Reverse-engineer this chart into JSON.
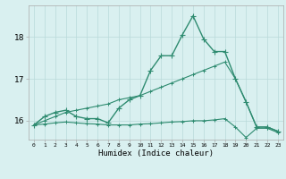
{
  "x": [
    0,
    1,
    2,
    3,
    4,
    5,
    6,
    7,
    8,
    9,
    10,
    11,
    12,
    13,
    14,
    15,
    16,
    17,
    18,
    19,
    20,
    21,
    22,
    23
  ],
  "main_curve": [
    15.9,
    16.1,
    16.2,
    16.25,
    16.1,
    16.05,
    16.05,
    15.95,
    16.3,
    16.5,
    16.6,
    17.2,
    17.55,
    17.55,
    18.05,
    18.5,
    17.95,
    17.65,
    17.65,
    17.0,
    16.45,
    15.85,
    15.85,
    15.75
  ],
  "upper_line": [
    15.9,
    16.0,
    16.1,
    16.2,
    16.25,
    16.3,
    16.35,
    16.4,
    16.5,
    16.55,
    16.6,
    16.7,
    16.8,
    16.9,
    17.0,
    17.1,
    17.2,
    17.3,
    17.4,
    17.0,
    16.45,
    15.85,
    15.85,
    15.75
  ],
  "lower_line": [
    15.9,
    15.92,
    15.95,
    15.97,
    15.95,
    15.93,
    15.92,
    15.9,
    15.9,
    15.9,
    15.92,
    15.93,
    15.95,
    15.97,
    15.98,
    16.0,
    16.0,
    16.02,
    16.05,
    15.85,
    15.6,
    15.82,
    15.82,
    15.72
  ],
  "line_color": "#2e8b70",
  "bg_color": "#d9f0f0",
  "grid_color": "#b8dada",
  "xlabel": "Humidex (Indice chaleur)",
  "yticks": [
    16,
    17,
    18
  ],
  "xlim": [
    -0.5,
    23.5
  ],
  "ylim": [
    15.55,
    18.75
  ]
}
